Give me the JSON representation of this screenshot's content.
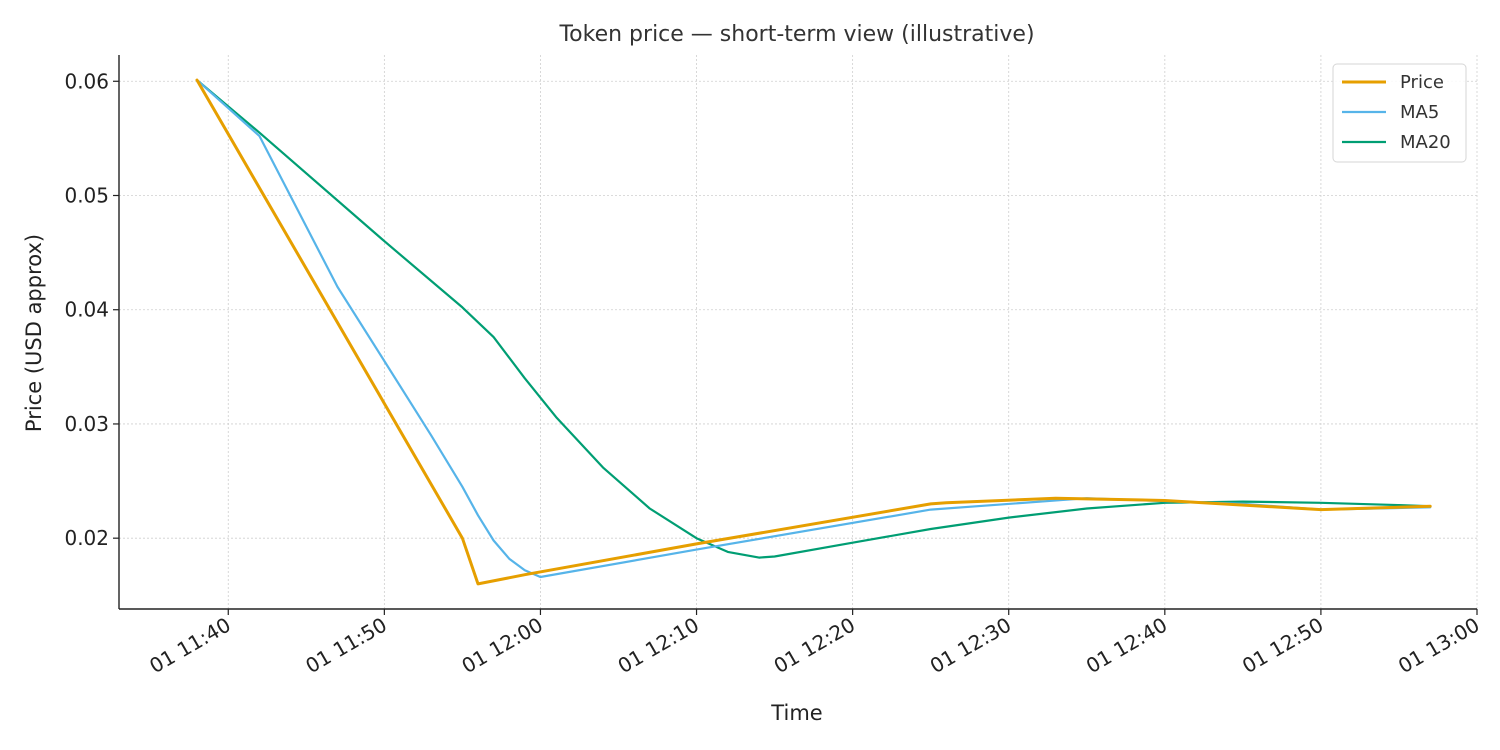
{
  "chart_data": {
    "type": "line",
    "title": "Token price — short-term view (illustrative)",
    "xlabel": "Time",
    "ylabel": "Price (USD approx)",
    "x_ticks": [
      "01 11:40",
      "01 11:50",
      "01 12:00",
      "01 12:10",
      "01 12:20",
      "01 12:30",
      "01 12:40",
      "01 12:50",
      "01 13:00"
    ],
    "y_ticks": [
      "0.02",
      "0.03",
      "0.04",
      "0.05",
      "0.06"
    ],
    "xlim": [
      "11:33",
      "13:00"
    ],
    "ylim": [
      0.0138,
      0.0623
    ],
    "grid": true,
    "legend_position": "top-right",
    "series": [
      {
        "name": "Price",
        "color": "#E69F00",
        "points": [
          [
            "11:38",
            0.0601
          ],
          [
            "11:55",
            0.02
          ],
          [
            "11:56",
            0.016
          ],
          [
            "11:59",
            0.0168
          ],
          [
            "12:10",
            0.0195
          ],
          [
            "12:25",
            0.023
          ],
          [
            "12:26",
            0.0231
          ],
          [
            "12:33",
            0.0235
          ],
          [
            "12:40",
            0.0233
          ],
          [
            "12:50",
            0.0225
          ],
          [
            "12:57",
            0.0228
          ]
        ]
      },
      {
        "name": "MA5",
        "color": "#56B4E9",
        "points": [
          [
            "11:38",
            0.0601
          ],
          [
            "11:42",
            0.0552
          ],
          [
            "11:47",
            0.042
          ],
          [
            "11:50",
            0.0355
          ],
          [
            "11:53",
            0.029
          ],
          [
            "11:55",
            0.0245
          ],
          [
            "11:56",
            0.022
          ],
          [
            "11:57",
            0.0198
          ],
          [
            "11:58",
            0.0182
          ],
          [
            "11:59",
            0.0172
          ],
          [
            "12:00",
            0.0166
          ],
          [
            "12:10",
            0.019
          ],
          [
            "12:25",
            0.0225
          ],
          [
            "12:35",
            0.0235
          ],
          [
            "12:45",
            0.023
          ],
          [
            "12:50",
            0.0225
          ],
          [
            "12:57",
            0.0227
          ]
        ]
      },
      {
        "name": "MA20",
        "color": "#009E73",
        "points": [
          [
            "11:38",
            0.0601
          ],
          [
            "11:42",
            0.0555
          ],
          [
            "11:50",
            0.046
          ],
          [
            "11:55",
            0.0402
          ],
          [
            "11:57",
            0.0376
          ],
          [
            "11:59",
            0.034
          ],
          [
            "12:01",
            0.0306
          ],
          [
            "12:04",
            0.0262
          ],
          [
            "12:07",
            0.0226
          ],
          [
            "12:10",
            0.02
          ],
          [
            "12:12",
            0.0188
          ],
          [
            "12:14",
            0.0183
          ],
          [
            "12:15",
            0.0184
          ],
          [
            "12:20",
            0.0196
          ],
          [
            "12:25",
            0.0208
          ],
          [
            "12:30",
            0.0218
          ],
          [
            "12:35",
            0.0226
          ],
          [
            "12:40",
            0.0231
          ],
          [
            "12:45",
            0.0232
          ],
          [
            "12:50",
            0.0231
          ],
          [
            "12:55",
            0.0229
          ],
          [
            "12:57",
            0.0228
          ]
        ]
      }
    ]
  }
}
